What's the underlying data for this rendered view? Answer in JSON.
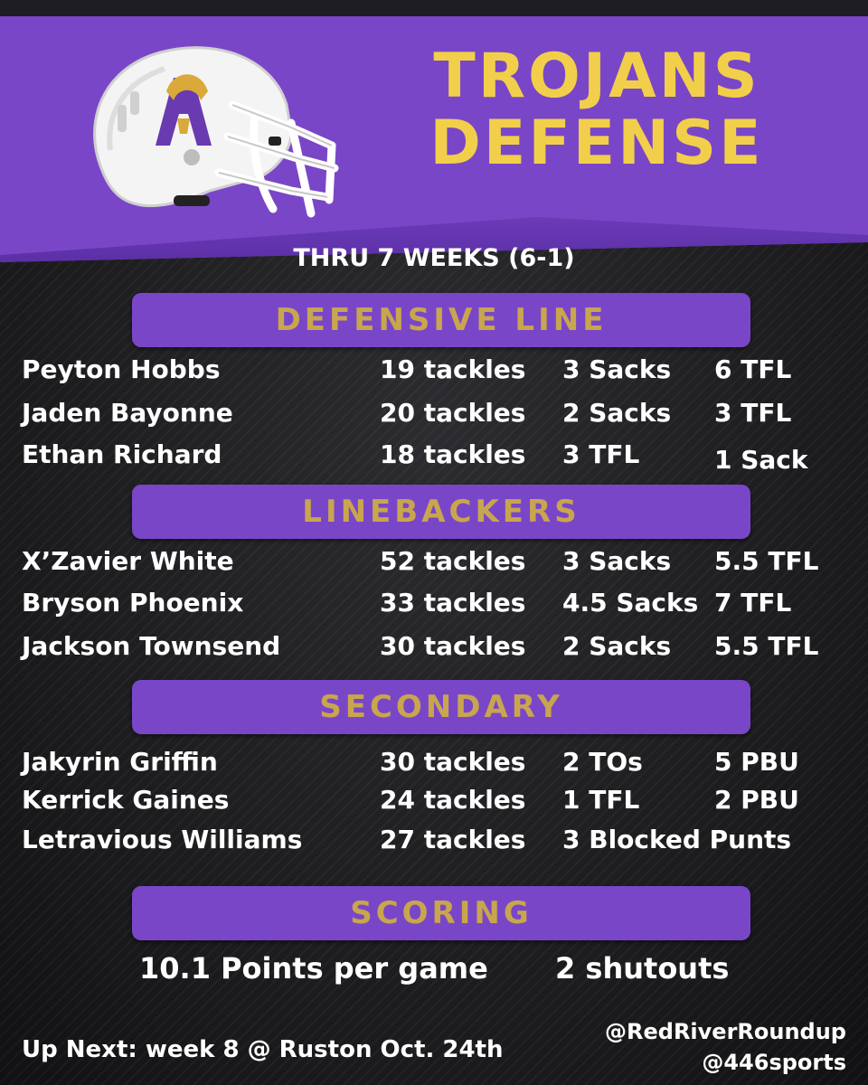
{
  "header": {
    "title_line1": "TROJANS",
    "title_line2": "DEFENSE",
    "subtitle": "THRU 7 WEEKS (6-1)",
    "logo_icon": "football-helmet-icon"
  },
  "colors": {
    "purple": "#7a46c8",
    "gold_title": "#f2cf4a",
    "gold_banner": "#c8a64e",
    "background": "#1b1b1d",
    "text": "#ffffff"
  },
  "sections": {
    "defensive_line": {
      "title": "DEFENSIVE LINE",
      "players": [
        {
          "name": "Peyton Hobbs",
          "s1": "19 tackles",
          "s2": "3 Sacks",
          "s3": "6 TFL"
        },
        {
          "name": "Jaden Bayonne",
          "s1": "20 tackles",
          "s2": "2 Sacks",
          "s3": "3 TFL"
        },
        {
          "name": "Ethan Richard",
          "s1": "18 tackles",
          "s2": "3 TFL",
          "s3": "1 Sack"
        }
      ]
    },
    "linebackers": {
      "title": "LINEBACKERS",
      "players": [
        {
          "name": "X’Zavier White",
          "s1": "52 tackles",
          "s2": "3 Sacks",
          "s3": "5.5 TFL"
        },
        {
          "name": "Bryson Phoenix",
          "s1": "33 tackles",
          "s2": "4.5 Sacks",
          "s3": "7 TFL"
        },
        {
          "name": "Jackson Townsend",
          "s1": "30 tackles",
          "s2": "2 Sacks",
          "s3": "5.5 TFL"
        }
      ]
    },
    "secondary": {
      "title": "SECONDARY",
      "players": [
        {
          "name": "Jakyrin Griffin",
          "s1": "30 tackles",
          "s2": "2 TOs",
          "s3": "5 PBU"
        },
        {
          "name": "Kerrick Gaines",
          "s1": "24 tackles",
          "s2": "1 TFL",
          "s3": "2 PBU"
        },
        {
          "name": "Letravious Williams",
          "s1": "27 tackles",
          "s2": "3 Blocked Punts",
          "s3": ""
        }
      ]
    },
    "scoring": {
      "title": "SCORING",
      "ppg": "10.1 Points per game",
      "shutouts": "2 shutouts"
    }
  },
  "footer": {
    "up_next": "Up Next: week 8 @ Ruston Oct. 24th",
    "handle1": "@RedRiverRoundup",
    "handle2": "@446sports"
  }
}
